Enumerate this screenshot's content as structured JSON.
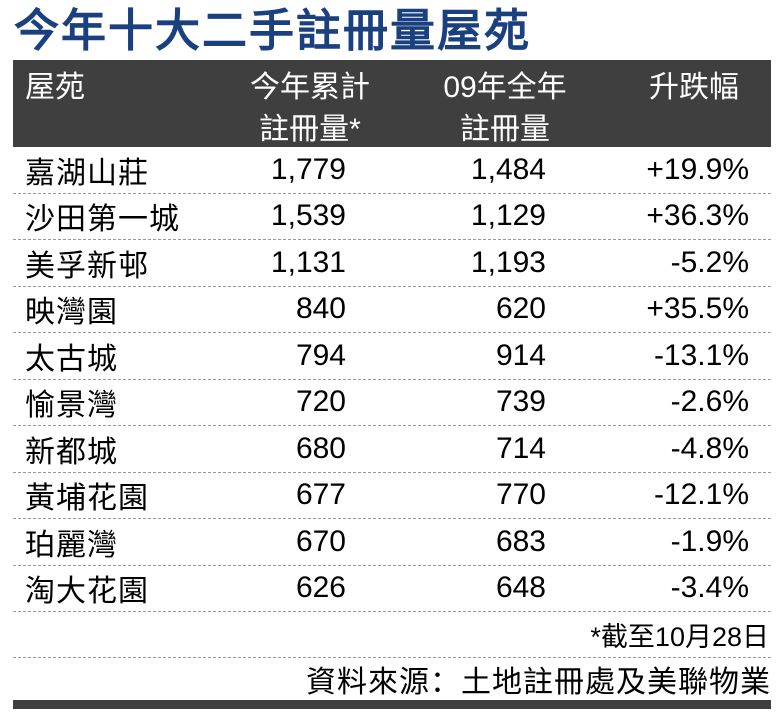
{
  "title": "今年十大二手註冊量屋苑",
  "colors": {
    "title_accent": "#1A4080",
    "header_bg": "#3F3F3F",
    "bottom_bar": "#3F3F3F",
    "divider_dash": "#9A9A9A"
  },
  "table": {
    "columns": [
      {
        "line1": "屋苑",
        "line2": ""
      },
      {
        "line1": "今年累計",
        "line2": "註冊量*"
      },
      {
        "line1": "09年全年",
        "line2": "註冊量"
      },
      {
        "line1": "升跌幅",
        "line2": ""
      }
    ],
    "rows": [
      {
        "estate": "嘉湖山莊",
        "ytd": "1,779",
        "full09": "1,484",
        "change": "+19.9%"
      },
      {
        "estate": "沙田第一城",
        "ytd": "1,539",
        "full09": "1,129",
        "change": "+36.3%"
      },
      {
        "estate": "美孚新邨",
        "ytd": "1,131",
        "full09": "1,193",
        "change": "-5.2%"
      },
      {
        "estate": "映灣園",
        "ytd": "840",
        "full09": "620",
        "change": "+35.5%"
      },
      {
        "estate": "太古城",
        "ytd": "794",
        "full09": "914",
        "change": "-13.1%"
      },
      {
        "estate": "愉景灣",
        "ytd": "720",
        "full09": "739",
        "change": "-2.6%"
      },
      {
        "estate": "新都城",
        "ytd": "680",
        "full09": "714",
        "change": "-4.8%"
      },
      {
        "estate": "黃埔花園",
        "ytd": "677",
        "full09": "770",
        "change": "-12.1%"
      },
      {
        "estate": "珀麗灣",
        "ytd": "670",
        "full09": "683",
        "change": "-1.9%"
      },
      {
        "estate": "淘大花園",
        "ytd": "626",
        "full09": "648",
        "change": "-3.4%"
      }
    ]
  },
  "footnote": "*截至10月28日",
  "source": "資料來源：土地註冊處及美聯物業",
  "chart_data": {
    "type": "table",
    "title": "今年十大二手註冊量屋苑",
    "columns": [
      "屋苑",
      "今年累計註冊量*",
      "09年全年註冊量",
      "升跌幅"
    ],
    "rows": [
      [
        "嘉湖山莊",
        1779,
        1484,
        "+19.9%"
      ],
      [
        "沙田第一城",
        1539,
        1129,
        "+36.3%"
      ],
      [
        "美孚新邨",
        1131,
        1193,
        "-5.2%"
      ],
      [
        "映灣園",
        840,
        620,
        "+35.5%"
      ],
      [
        "太古城",
        794,
        914,
        "-13.1%"
      ],
      [
        "愉景灣",
        720,
        739,
        "-2.6%"
      ],
      [
        "新都城",
        680,
        714,
        "-4.8%"
      ],
      [
        "黃埔花園",
        677,
        770,
        "-12.1%"
      ],
      [
        "珀麗灣",
        670,
        683,
        "-1.9%"
      ],
      [
        "淘大花園",
        626,
        648,
        "-3.4%"
      ]
    ],
    "footnote": "*截至10月28日",
    "source": "資料來源：土地註冊處及美聯物業"
  }
}
